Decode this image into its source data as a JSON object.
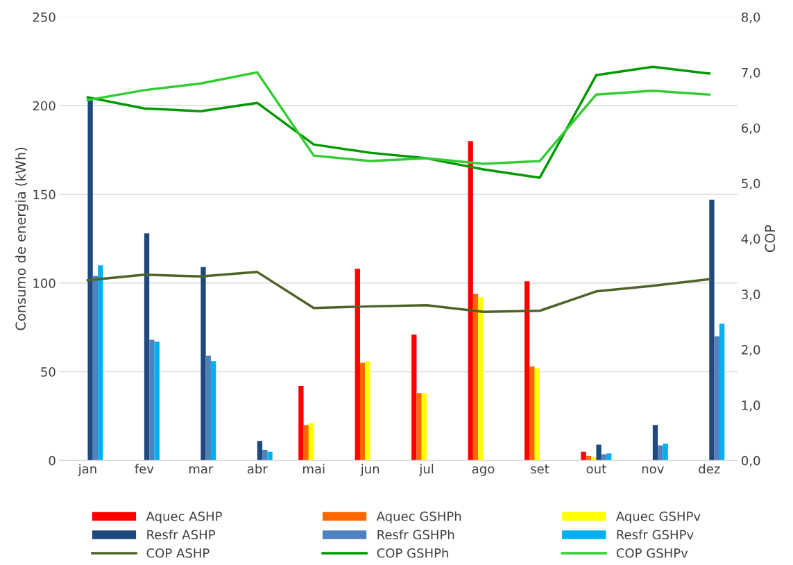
{
  "chart_data": {
    "type": "bar",
    "categories": [
      "jan",
      "fev",
      "mar",
      "abr",
      "mai",
      "jun",
      "jul",
      "ago",
      "set",
      "out",
      "nov",
      "dez"
    ],
    "ylabel": "Consumo de energia (kWh)",
    "y2label": "COP",
    "ylim": [
      0,
      250
    ],
    "yticks": [
      0,
      50,
      100,
      150,
      200,
      250
    ],
    "y2lim": [
      0,
      8
    ],
    "y2ticks": [
      {
        "value": 0,
        "label": "0,0"
      },
      {
        "value": 1,
        "label": "1,0"
      },
      {
        "value": 2,
        "label": "2,0"
      },
      {
        "value": 3,
        "label": "3,0"
      },
      {
        "value": 4,
        "label": "4,0"
      },
      {
        "value": 5,
        "label": "5,0"
      },
      {
        "value": 6,
        "label": "6,0"
      },
      {
        "value": 7,
        "label": "7,0"
      },
      {
        "value": 8,
        "label": "8,0"
      }
    ],
    "grid": "y",
    "legend": "bottom",
    "series": [
      {
        "name": "Aquec ASHP",
        "color": "#ff0000",
        "values": [
          0,
          0,
          0,
          0,
          42,
          108,
          71,
          180,
          101,
          5,
          0,
          0
        ]
      },
      {
        "name": "Aquec GSHPh",
        "color": "#ff6600",
        "values": [
          0,
          0,
          0,
          0,
          20,
          55,
          38,
          94,
          53,
          2.5,
          0,
          0
        ]
      },
      {
        "name": "Aquec GSHPv",
        "color": "#ffff00",
        "values": [
          0,
          0,
          0,
          0,
          21,
          56,
          38,
          92,
          52,
          2,
          0,
          0
        ]
      },
      {
        "name": "Resfr ASHP",
        "color": "#1f497d",
        "values": [
          203,
          128,
          109,
          11,
          0,
          0,
          0,
          0,
          0,
          9,
          20,
          147
        ]
      },
      {
        "name": "Resfr GSHPh",
        "color": "#4f81bd",
        "values": [
          104,
          68,
          59,
          6,
          0,
          0,
          0,
          0,
          0,
          3.5,
          8.5,
          70
        ]
      },
      {
        "name": "Resfr GSHPv",
        "color": "#00b0f0",
        "values": [
          110,
          67,
          56,
          5,
          0,
          0,
          0,
          0,
          0,
          4,
          9.5,
          77
        ]
      },
      {
        "name": "COP ASHP",
        "type": "line",
        "axis": "y2",
        "color": "#4f6228",
        "values": [
          3.25,
          3.35,
          3.32,
          3.4,
          2.75,
          2.78,
          2.8,
          2.68,
          2.7,
          3.05,
          3.15,
          3.27
        ]
      },
      {
        "name": "COP GSHPh",
        "type": "line",
        "axis": "y2",
        "color": "#009900",
        "values": [
          6.55,
          6.35,
          6.3,
          6.45,
          5.7,
          5.55,
          5.45,
          5.25,
          5.1,
          6.95,
          7.1,
          6.98
        ]
      },
      {
        "name": "COP GSHPv",
        "type": "line",
        "axis": "y2",
        "color": "#33cc33",
        "values": [
          6.5,
          6.68,
          6.8,
          7.0,
          5.5,
          5.4,
          5.45,
          5.35,
          5.4,
          6.6,
          6.67,
          6.6
        ]
      }
    ]
  }
}
